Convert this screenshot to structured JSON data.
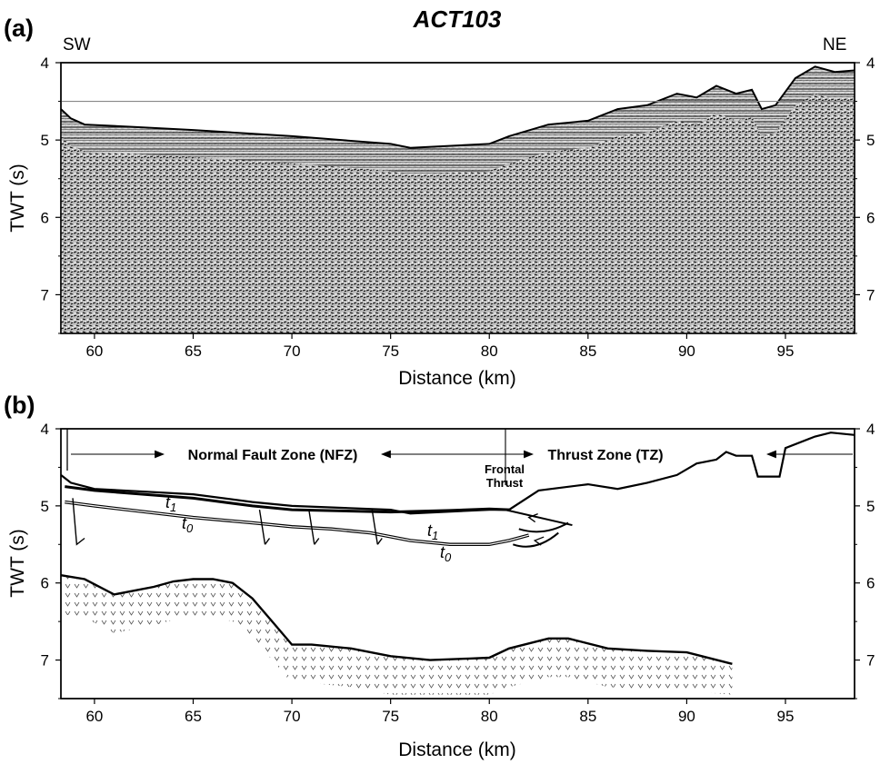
{
  "title": "ACT103",
  "panels": {
    "a": {
      "label": "(a)",
      "left_corner": "SW",
      "right_corner": "NE",
      "xlabel": "Distance (km)",
      "ylabel": "TWT (s)"
    },
    "b": {
      "label": "(b)",
      "xlabel": "Distance (km)",
      "ylabel": "TWT (s)",
      "zones": {
        "nfz": "Normal Fault Zone (NFZ)",
        "tz": "Thrust Zone (TZ)",
        "frontal_line1": "Frontal",
        "frontal_line2": "Thrust"
      },
      "horizons": {
        "t1": "t",
        "t1_sub": "1",
        "t0": "t",
        "t0_sub": "0"
      }
    }
  },
  "axes": {
    "x_range_km": [
      58.3,
      98.5
    ],
    "y_range_s": [
      4,
      7.5
    ],
    "x_ticks": [
      60,
      65,
      70,
      75,
      80,
      85,
      90,
      95
    ],
    "y_ticks": [
      4,
      5,
      6,
      7
    ]
  },
  "chart_data": [
    {
      "type": "line",
      "panel": "a",
      "description_values": "seismic reflection section",
      "reference_line_twt_s": 4.5,
      "seafloor": {
        "x": [
          58.3,
          58.8,
          59.5,
          62,
          65,
          70,
          75,
          76,
          80,
          81,
          83,
          85,
          86.5,
          88,
          89.5,
          90.5,
          91.5,
          92.5,
          93.3,
          93.8,
          94.5,
          95.5,
          96.5,
          97.5,
          98.5
        ],
        "y": [
          4.6,
          4.72,
          4.8,
          4.83,
          4.87,
          4.95,
          5.05,
          5.1,
          5.05,
          4.95,
          4.8,
          4.75,
          4.6,
          4.55,
          4.4,
          4.45,
          4.3,
          4.4,
          4.35,
          4.6,
          4.55,
          4.2,
          4.05,
          4.12,
          4.1
        ]
      },
      "xlim": [
        58.3,
        98.5
      ],
      "ylim": [
        4,
        7.5
      ]
    },
    {
      "type": "line",
      "panel": "b",
      "series": [
        {
          "name": "t1",
          "x": [
            58.5,
            60,
            65,
            68,
            70,
            75,
            78,
            80,
            81
          ],
          "y": [
            4.75,
            4.8,
            4.9,
            5.0,
            5.05,
            5.08,
            5.06,
            5.04,
            5.05
          ]
        },
        {
          "name": "t0",
          "x": [
            58.5,
            60,
            65,
            68,
            70,
            72,
            74,
            76,
            78,
            80,
            81,
            82
          ],
          "y": [
            4.95,
            5.0,
            5.15,
            5.22,
            5.27,
            5.3,
            5.35,
            5.45,
            5.5,
            5.5,
            5.45,
            5.38
          ]
        },
        {
          "name": "seafloor",
          "x": [
            58.3,
            58.8,
            60,
            65,
            68,
            70,
            75,
            76,
            80,
            81,
            82.5,
            85,
            86.5,
            88,
            89.5,
            90.5,
            91.5,
            92,
            92.5,
            93.3,
            93.6,
            94.7,
            95,
            96.5,
            97.3,
            98.5
          ],
          "y": [
            4.6,
            4.7,
            4.78,
            4.85,
            4.95,
            5.0,
            5.05,
            5.1,
            5.05,
            5.05,
            4.8,
            4.72,
            4.78,
            4.7,
            4.6,
            4.45,
            4.4,
            4.3,
            4.35,
            4.35,
            4.62,
            4.62,
            4.25,
            4.1,
            4.05,
            4.08
          ]
        },
        {
          "name": "basement",
          "x": [
            58.3,
            59.5,
            61,
            62,
            63,
            64,
            65,
            66,
            67,
            68,
            69,
            70,
            71,
            73,
            75,
            77,
            79,
            80,
            81,
            83,
            84,
            86,
            88,
            90,
            92.3
          ],
          "y": [
            5.9,
            5.95,
            6.15,
            6.1,
            6.05,
            5.98,
            5.95,
            5.95,
            6.0,
            6.2,
            6.5,
            6.8,
            6.8,
            6.85,
            6.95,
            7.0,
            6.98,
            6.97,
            6.85,
            6.72,
            6.72,
            6.85,
            6.88,
            6.9,
            7.05
          ]
        }
      ],
      "xlim": [
        58.3,
        98.5
      ],
      "ylim": [
        4,
        7.5
      ]
    }
  ]
}
